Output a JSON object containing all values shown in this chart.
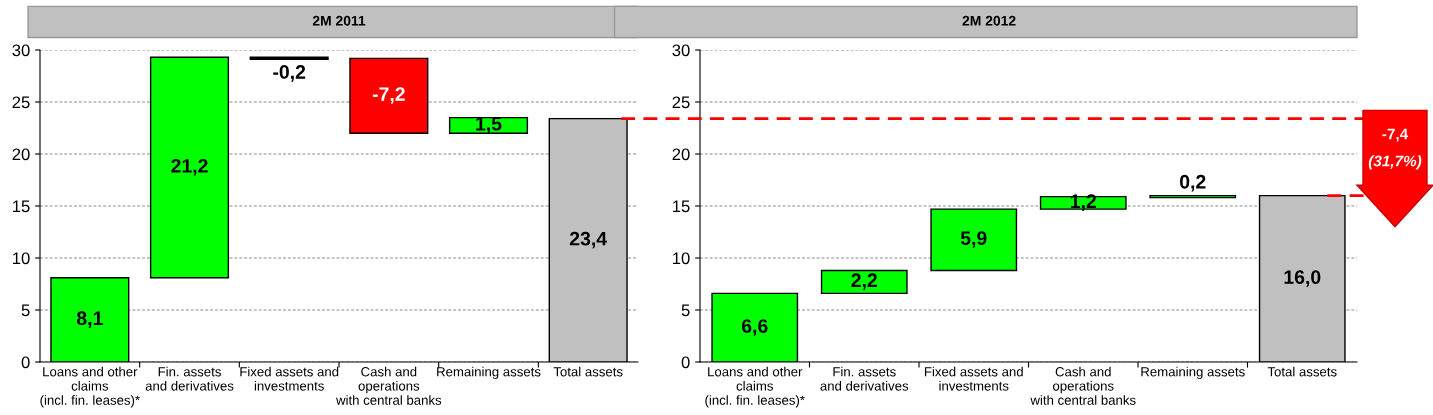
{
  "chart_data": [
    {
      "type": "bar",
      "title": "2M 2011",
      "categories": [
        "Loans and other\nclaims\n(incl. fin. leases)*",
        "Fin. assets\nand derivatives",
        "Fixed assets and\ninvestments",
        "Cash and\noperations\nwith central banks",
        "Remaining assets",
        "Total assets"
      ],
      "values": [
        8.1,
        21.2,
        -0.2,
        -7.2,
        1.5,
        23.4
      ],
      "base": [
        0,
        8.1,
        29.3,
        29.2,
        22.0,
        0
      ],
      "colors": [
        "#00ff00",
        "#00ff00",
        "#000000",
        "#ff0000",
        "#00ff00",
        "#c0c0c0"
      ],
      "value_labels": [
        "8,1",
        "21,2",
        "-0,2",
        "-7,2",
        "1,5",
        "23,4"
      ],
      "ylim": [
        0,
        30
      ],
      "yticks": [
        0,
        5,
        10,
        15,
        20,
        25,
        30
      ],
      "grid": "y"
    },
    {
      "type": "bar",
      "title": "2M 2012",
      "categories": [
        "Loans and other\nclaims\n(incl. fin. leases)*",
        "Fin. assets\nand derivatives",
        "Fixed assets and\ninvestments",
        "Cash and\noperations\nwith central banks",
        "Remaining assets",
        "Total assets"
      ],
      "values": [
        6.6,
        2.2,
        5.9,
        1.2,
        0.2,
        16.0
      ],
      "base": [
        0,
        6.6,
        8.8,
        14.7,
        15.8,
        0
      ],
      "colors": [
        "#00ff00",
        "#00ff00",
        "#00ff00",
        "#00ff00",
        "#00ff00",
        "#c0c0c0"
      ],
      "value_labels": [
        "6,6",
        "2,2",
        "5,9",
        "1,2",
        "0,2",
        "16,0"
      ],
      "ylim": [
        0,
        30
      ],
      "yticks": [
        0,
        5,
        10,
        15,
        20,
        25,
        30
      ],
      "grid": "y",
      "ref_lines": [
        {
          "axis": "y",
          "value": 23.4,
          "color": "#ff0000",
          "line_style": "dashed"
        }
      ],
      "annotations": [
        "-7,4",
        "(31,7%)"
      ]
    }
  ]
}
